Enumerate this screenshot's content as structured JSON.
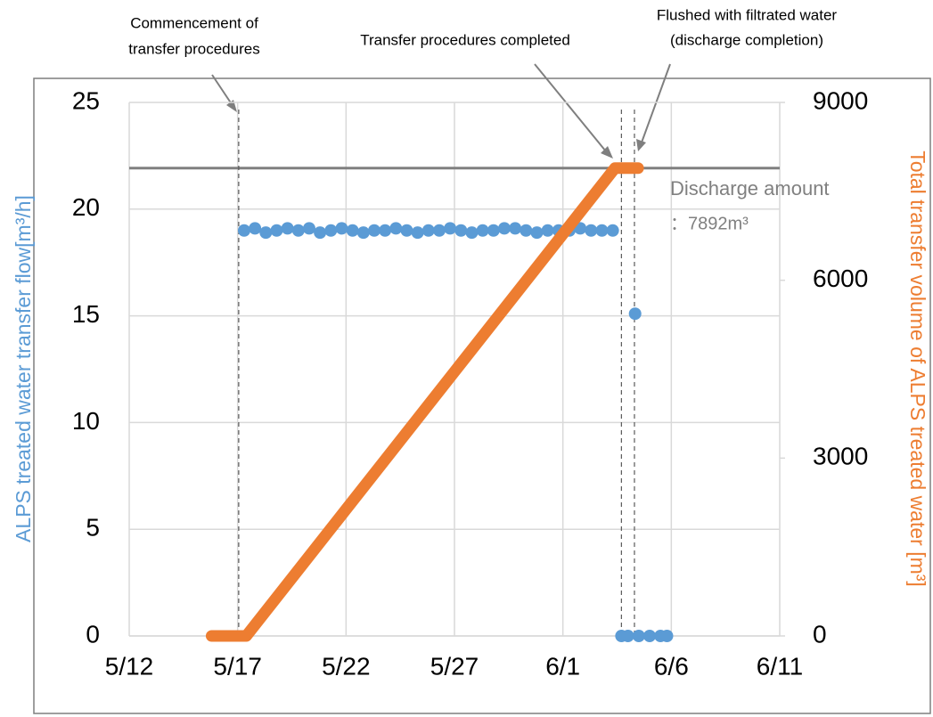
{
  "chart_data": {
    "type": "scatter",
    "y_label": "ALPS treated water transfer flow[m³/h]",
    "y2_label": "Total transfer volume of ALPS treated water [m³]",
    "xlim": [
      132,
      162
    ],
    "xticks": [
      {
        "value": 132,
        "label": "5/12"
      },
      {
        "value": 137,
        "label": "5/17"
      },
      {
        "value": 142,
        "label": "5/22"
      },
      {
        "value": 147,
        "label": "5/27"
      },
      {
        "value": 152,
        "label": "6/1"
      },
      {
        "value": 157,
        "label": "6/6"
      },
      {
        "value": 162,
        "label": "6/11"
      }
    ],
    "ylim": [
      0,
      25
    ],
    "yticks": [
      0,
      5,
      10,
      15,
      20,
      25
    ],
    "y2lim": [
      0,
      9000
    ],
    "y2ticks": [
      0,
      3000,
      6000,
      9000
    ],
    "grid": true,
    "series": [
      {
        "kind": "markers",
        "color": "#5b9bd5",
        "x": [
          137.3,
          137.8,
          138.3,
          138.8,
          139.3,
          139.8,
          140.3,
          140.8,
          141.3,
          141.8,
          142.3,
          142.8,
          143.3,
          143.8,
          144.3,
          144.8,
          145.3,
          145.8,
          146.3,
          146.8,
          147.3,
          147.8,
          148.3,
          148.8,
          149.3,
          149.8,
          150.3,
          150.8,
          151.3,
          151.8,
          152.3,
          152.8,
          153.3,
          153.8,
          154.3,
          154.7,
          155.0,
          155.33,
          155.5,
          156.0,
          156.5,
          156.8
        ],
        "values": [
          19.0,
          19.1,
          18.9,
          19.0,
          19.1,
          19.0,
          19.1,
          18.9,
          19.0,
          19.1,
          19.0,
          18.9,
          19.0,
          19.0,
          19.1,
          19.0,
          18.9,
          19.0,
          19.0,
          19.1,
          19.0,
          18.9,
          19.0,
          19.0,
          19.1,
          19.1,
          19.0,
          18.9,
          19.0,
          19.0,
          19.0,
          19.1,
          19.0,
          19.0,
          19.0,
          0,
          0,
          15.1,
          0,
          0,
          0,
          0
        ]
      },
      {
        "kind": "line",
        "color": "#ed7d31",
        "axis": "y2",
        "x": [
          135.8,
          137.4,
          154.4,
          155.47
        ],
        "values": [
          0,
          0,
          7892,
          7892
        ]
      }
    ],
    "reference_line": {
      "axis": "y2",
      "value": 7892,
      "color": "#808080",
      "label": [
        "Discharge amount",
        "：7892m³"
      ]
    },
    "event_lines": [
      137.05,
      154.7,
      155.3
    ],
    "annotations": [
      [
        "Commencement of",
        "transfer procedures"
      ],
      [
        "Transfer procedures completed"
      ],
      [
        "Flushed with filtrated water",
        "(discharge completion)"
      ]
    ]
  }
}
